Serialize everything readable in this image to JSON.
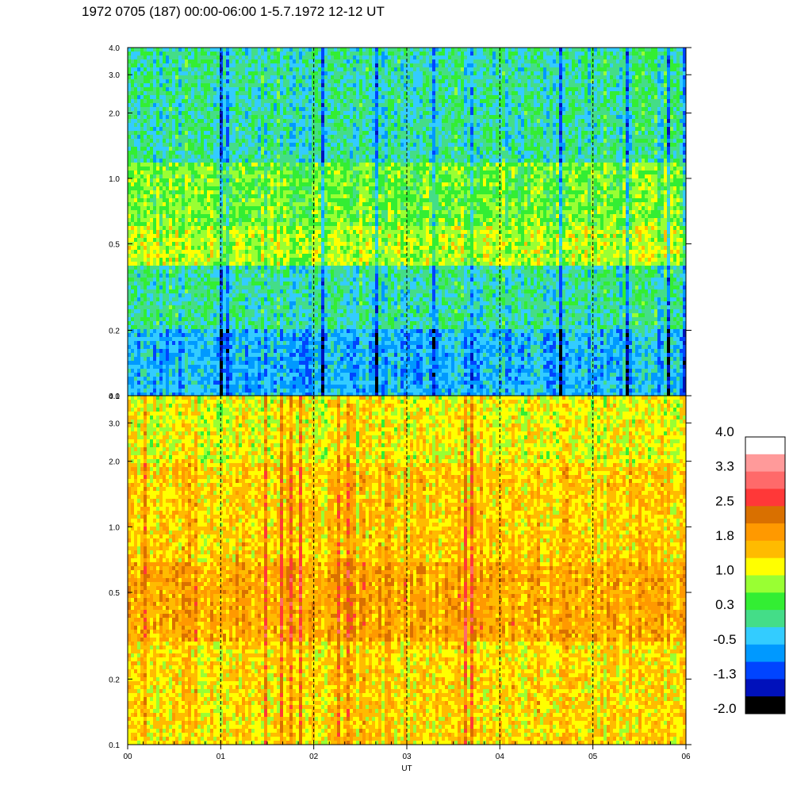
{
  "chart_data": [
    {
      "type": "heatmap",
      "panel": "top",
      "x": [
        "00",
        "01",
        "02",
        "03",
        "04",
        "05",
        "06"
      ],
      "xlabel": "",
      "ylabel": "",
      "y_scale": "log",
      "ylim": [
        0.1,
        4.0
      ],
      "y_ticks": [
        0.1,
        0.2,
        0.5,
        1.0,
        2.0,
        3.0,
        4.0
      ],
      "y_tick_labels": [
        "0.1",
        "0.2",
        "0.5",
        "1.0",
        "2.0",
        "3.0",
        "4.0"
      ],
      "dominant_value_by_frequency": [
        {
          "freq_range": [
            0.1,
            0.2
          ],
          "value": -0.5
        },
        {
          "freq_range": [
            0.2,
            0.4
          ],
          "value": 0.0
        },
        {
          "freq_range": [
            0.4,
            0.6
          ],
          "value": 0.9
        },
        {
          "freq_range": [
            0.6,
            1.2
          ],
          "value": 0.6
        },
        {
          "freq_range": [
            1.2,
            4.0
          ],
          "value": 0.0
        }
      ],
      "grid": "vertical dashed lines at each hour"
    },
    {
      "type": "heatmap",
      "panel": "bottom",
      "x": [
        "00",
        "01",
        "02",
        "03",
        "04",
        "05",
        "06"
      ],
      "xlabel": "UT",
      "ylabel": "",
      "y_scale": "log",
      "ylim": [
        0.1,
        4.0
      ],
      "y_ticks": [
        0.1,
        0.2,
        0.5,
        1.0,
        2.0,
        3.0,
        4.0
      ],
      "y_tick_labels": [
        "0.1",
        "0.2",
        "0.5",
        "1.0",
        "2.0",
        "3.0",
        "4.0"
      ],
      "dominant_value_by_frequency": [
        {
          "freq_range": [
            0.1,
            0.3
          ],
          "value": 1.4
        },
        {
          "freq_range": [
            0.3,
            0.7
          ],
          "value": 1.8
        },
        {
          "freq_range": [
            0.7,
            2.0
          ],
          "value": 1.5
        },
        {
          "freq_range": [
            2.0,
            4.0
          ],
          "value": 1.2
        }
      ],
      "grid": "vertical dashed lines at each hour"
    }
  ],
  "title": "1972 0705 (187) 00:00-06:00 1-5.7.1972  12-12 UT",
  "colorbar": {
    "range": [
      -2.0,
      4.0
    ],
    "labels": [
      "4.0",
      "3.3",
      "2.5",
      "1.8",
      "1.0",
      "0.3",
      "-0.5",
      "-1.3",
      "-2.0"
    ],
    "colors": [
      "#ffffff",
      "#ff9a9a",
      "#ff6a6a",
      "#ff3838",
      "#d97000",
      "#ff9900",
      "#ffbb00",
      "#ffff00",
      "#99ff33",
      "#33ee33",
      "#44dd88",
      "#33ccff",
      "#0099ff",
      "#0044ff",
      "#0011bb",
      "#000000"
    ]
  }
}
